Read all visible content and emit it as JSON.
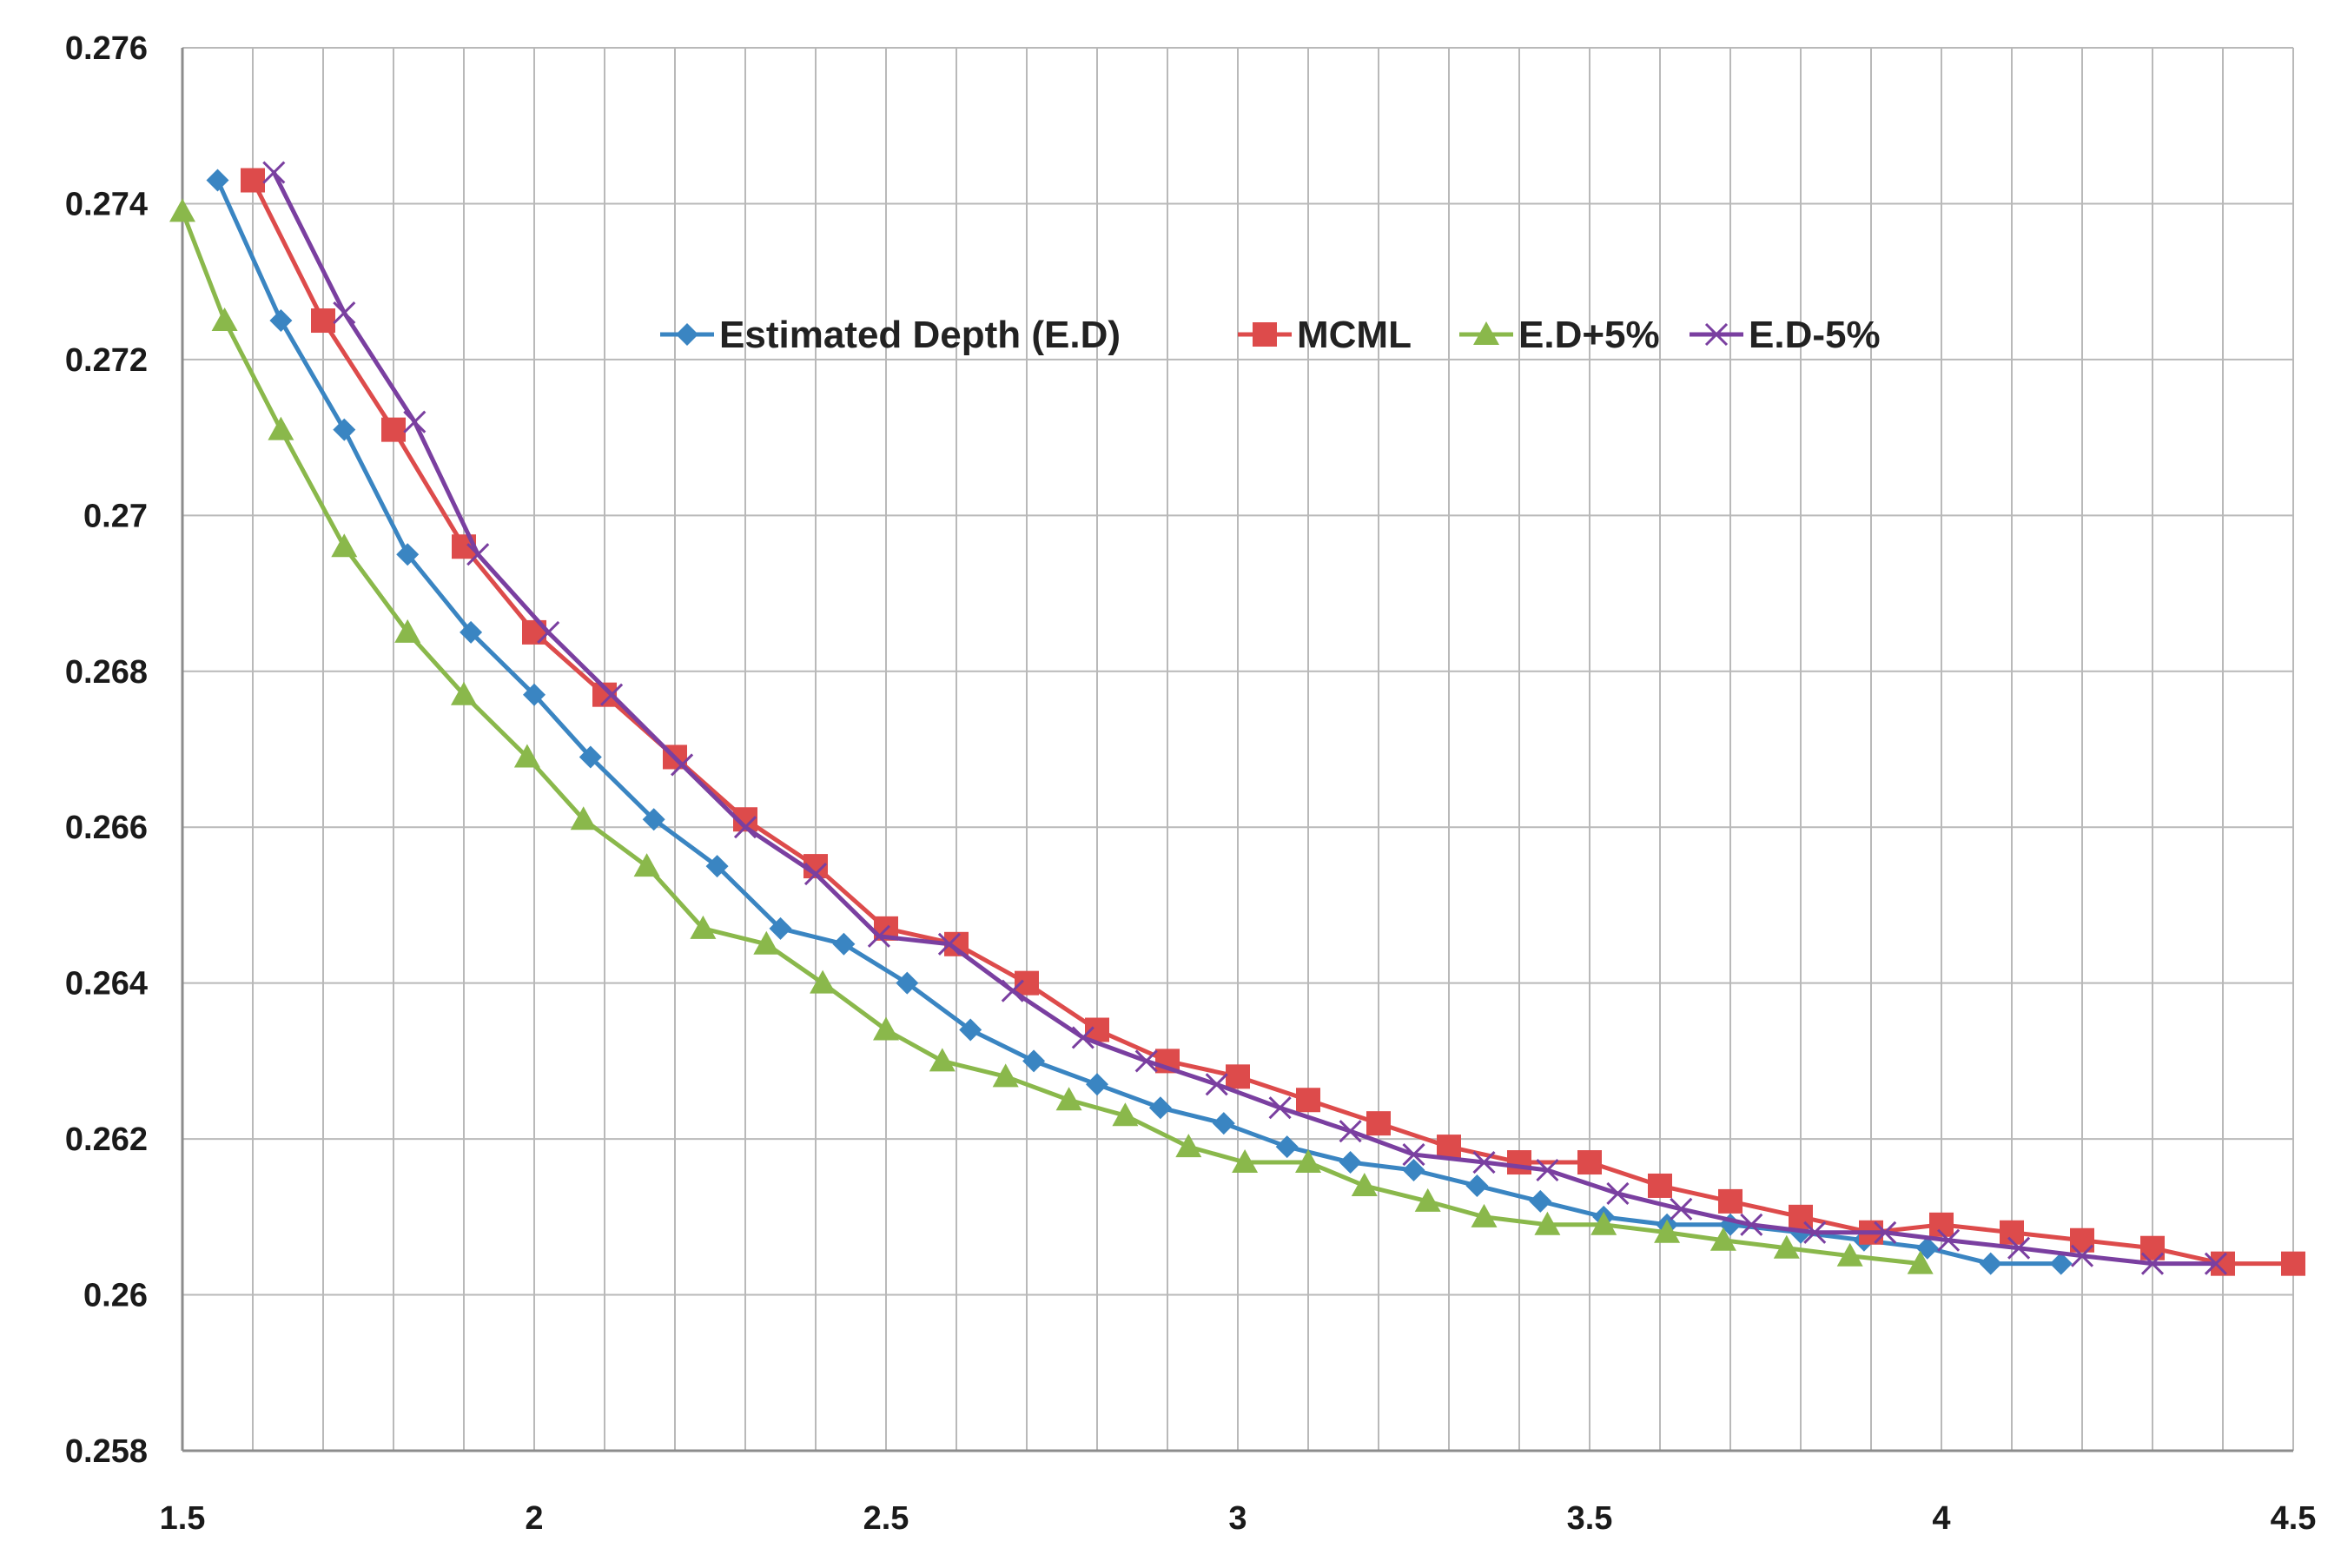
{
  "chart_data": {
    "type": "line",
    "title": "",
    "xlabel": "",
    "ylabel": "",
    "xlim": [
      1.5,
      4.5
    ],
    "ylim": [
      0.258,
      0.276
    ],
    "x_ticks": [
      {
        "value": 1.5,
        "label": "1.5"
      },
      {
        "value": 2,
        "label": "2"
      },
      {
        "value": 2.5,
        "label": "2.5"
      },
      {
        "value": 3,
        "label": "3"
      },
      {
        "value": 3.5,
        "label": "3.5"
      },
      {
        "value": 4,
        "label": "4"
      },
      {
        "value": 4.5,
        "label": "4.5"
      }
    ],
    "y_ticks": [
      {
        "value": 0.258,
        "label": "0.258"
      },
      {
        "value": 0.26,
        "label": "0.26"
      },
      {
        "value": 0.262,
        "label": "0.262"
      },
      {
        "value": 0.264,
        "label": "0.264"
      },
      {
        "value": 0.266,
        "label": "0.266"
      },
      {
        "value": 0.268,
        "label": "0.268"
      },
      {
        "value": 0.27,
        "label": "0.27"
      },
      {
        "value": 0.272,
        "label": "0.272"
      },
      {
        "value": 0.274,
        "label": "0.274"
      },
      {
        "value": 0.276,
        "label": "0.276"
      }
    ],
    "x_minor_grid_step": 0.1,
    "grid": true,
    "legend_position": "top-center",
    "series": [
      {
        "name": "Estimated Depth (E.D)",
        "color": "#3a85c2",
        "marker": "diamond",
        "x": [
          1.55,
          1.64,
          1.73,
          1.82,
          1.91,
          2.0,
          2.08,
          2.17,
          2.26,
          2.35,
          2.44,
          2.53,
          2.62,
          2.71,
          2.8,
          2.89,
          2.98,
          3.07,
          3.16,
          3.25,
          3.34,
          3.43,
          3.52,
          3.61,
          3.7,
          3.8,
          3.89,
          3.98,
          4.07,
          4.17
        ],
        "y": [
          0.2743,
          0.2725,
          0.2711,
          0.2695,
          0.2685,
          0.2677,
          0.2669,
          0.2661,
          0.2655,
          0.2647,
          0.2645,
          0.264,
          0.2634,
          0.263,
          0.2627,
          0.2624,
          0.2622,
          0.2619,
          0.2617,
          0.2616,
          0.2614,
          0.2612,
          0.261,
          0.2609,
          0.2609,
          0.2608,
          0.2607,
          0.2606,
          0.2604,
          0.2604
        ]
      },
      {
        "name": "MCML",
        "color": "#dd4b4b",
        "marker": "square",
        "x": [
          1.6,
          1.7,
          1.8,
          1.9,
          2.0,
          2.1,
          2.2,
          2.3,
          2.4,
          2.5,
          2.6,
          2.7,
          2.8,
          2.9,
          3.0,
          3.1,
          3.2,
          3.3,
          3.4,
          3.5,
          3.6,
          3.7,
          3.8,
          3.9,
          4.0,
          4.1,
          4.2,
          4.3,
          4.4,
          4.5
        ],
        "y": [
          0.2743,
          0.2725,
          0.2711,
          0.2696,
          0.2685,
          0.2677,
          0.2669,
          0.2661,
          0.2655,
          0.2647,
          0.2645,
          0.264,
          0.2634,
          0.263,
          0.2628,
          0.2625,
          0.2622,
          0.2619,
          0.2617,
          0.2617,
          0.2614,
          0.2612,
          0.261,
          0.2608,
          0.2609,
          0.2608,
          0.2607,
          0.2606,
          0.2604,
          0.2604
        ]
      },
      {
        "name": "E.D+5%",
        "color": "#8ab84b",
        "marker": "triangle",
        "x": [
          1.5,
          1.56,
          1.64,
          1.73,
          1.82,
          1.9,
          1.99,
          2.07,
          2.16,
          2.24,
          2.33,
          2.41,
          2.5,
          2.58,
          2.67,
          2.76,
          2.84,
          2.93,
          3.01,
          3.1,
          3.18,
          3.27,
          3.35,
          3.44,
          3.52,
          3.61,
          3.69,
          3.78,
          3.87,
          3.97
        ],
        "y": [
          0.2739,
          0.2725,
          0.2711,
          0.2696,
          0.2685,
          0.2677,
          0.2669,
          0.2661,
          0.2655,
          0.2647,
          0.2645,
          0.264,
          0.2634,
          0.263,
          0.2628,
          0.2625,
          0.2623,
          0.2619,
          0.2617,
          0.2617,
          0.2614,
          0.2612,
          0.261,
          0.2609,
          0.2609,
          0.2608,
          0.2607,
          0.2606,
          0.2605,
          0.2604
        ]
      },
      {
        "name": "E.D-5%",
        "color": "#7a3fa0",
        "marker": "x",
        "x": [
          1.63,
          1.73,
          1.83,
          1.92,
          2.02,
          2.11,
          2.21,
          2.3,
          2.4,
          2.49,
          2.59,
          2.68,
          2.78,
          2.87,
          2.97,
          3.06,
          3.16,
          3.25,
          3.35,
          3.44,
          3.54,
          3.63,
          3.73,
          3.82,
          3.92,
          4.01,
          4.11,
          4.2,
          4.3,
          4.39
        ],
        "y": [
          0.2744,
          0.2726,
          0.2712,
          0.2695,
          0.2685,
          0.2677,
          0.2668,
          0.266,
          0.2654,
          0.2646,
          0.2645,
          0.2639,
          0.2633,
          0.263,
          0.2627,
          0.2624,
          0.2621,
          0.2618,
          0.2617,
          0.2616,
          0.2613,
          0.2611,
          0.2609,
          0.2608,
          0.2608,
          0.2607,
          0.2606,
          0.2605,
          0.2604,
          0.2604
        ]
      }
    ]
  }
}
